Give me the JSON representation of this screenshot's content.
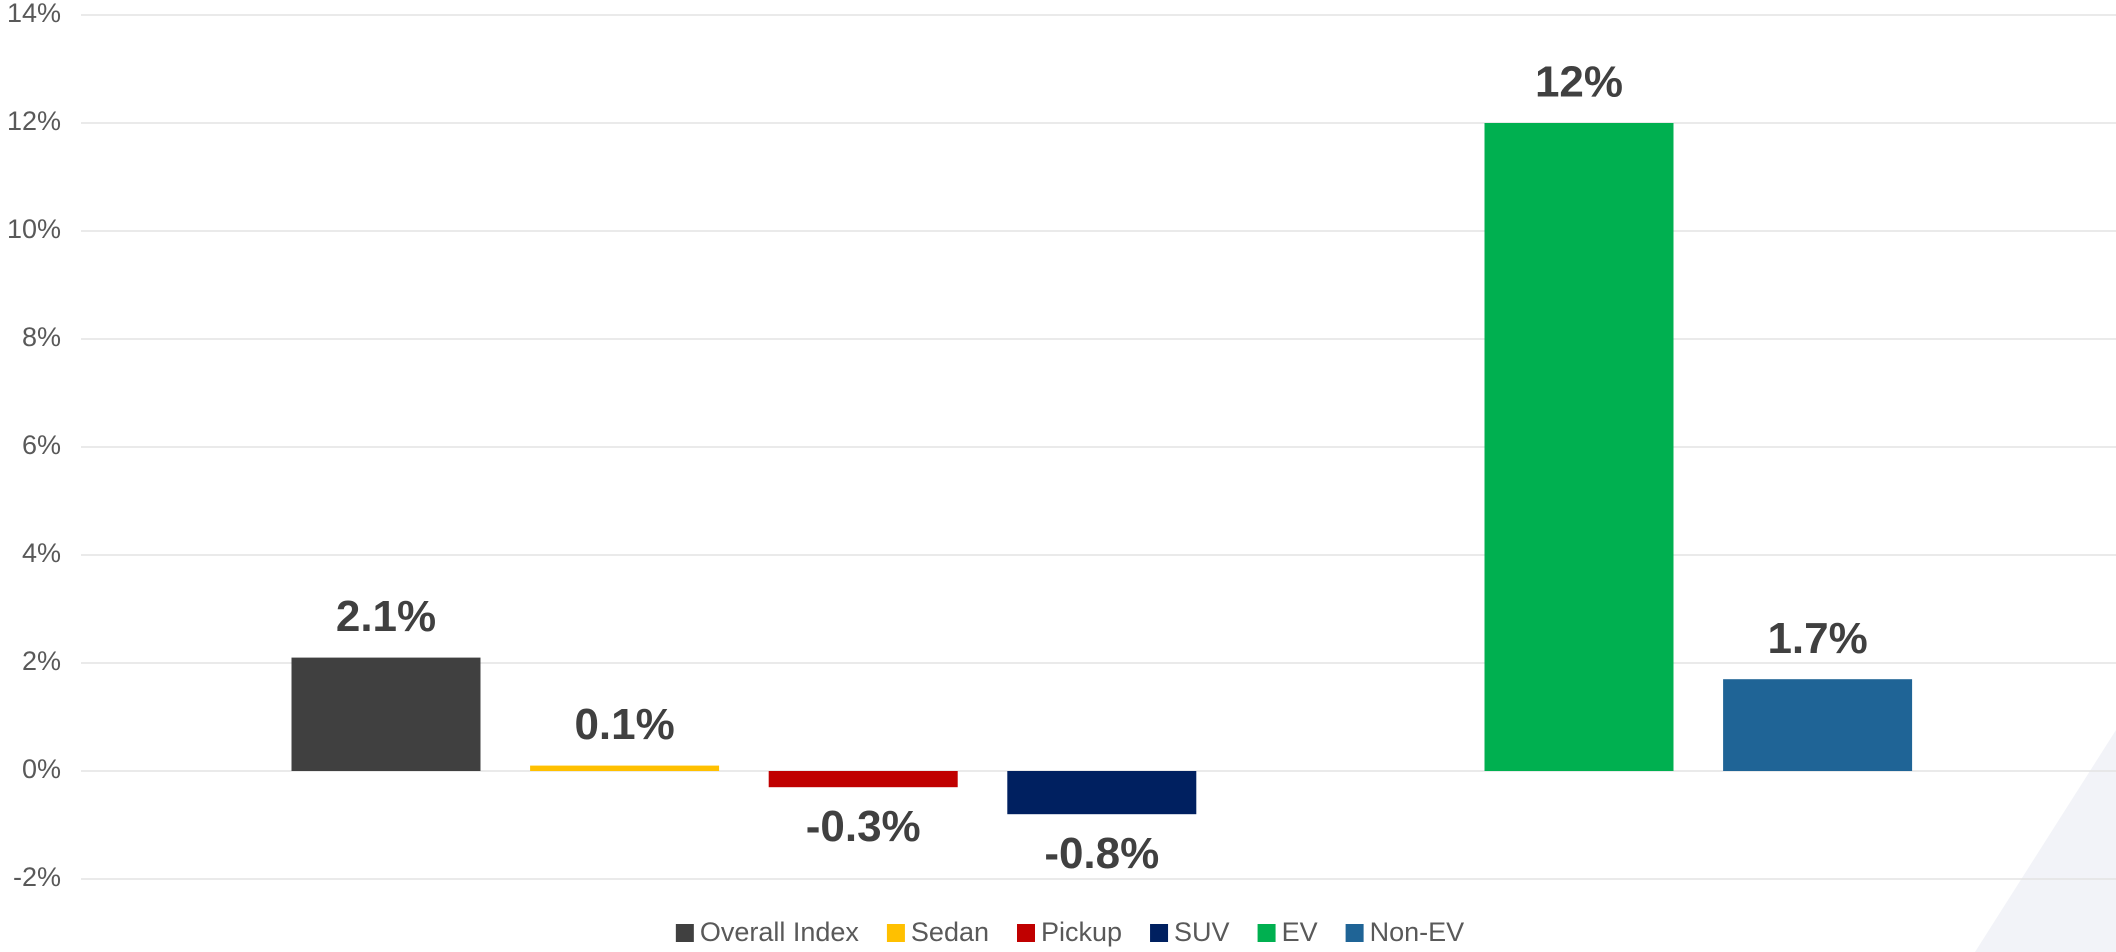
{
  "chart_data": {
    "type": "bar",
    "series": [
      {
        "name": "Overall Index",
        "color": "#404040",
        "values": [
          2.1
        ],
        "value_labels": [
          "2.1%"
        ]
      },
      {
        "name": "Sedan",
        "color": "#ffc000",
        "values": [
          0.1
        ],
        "value_labels": [
          "0.1%"
        ]
      },
      {
        "name": "Pickup",
        "color": "#c00000",
        "values": [
          -0.3
        ],
        "value_labels": [
          "-0.3%"
        ]
      },
      {
        "name": "SUV",
        "color": "#002060",
        "values": [
          -0.8
        ],
        "value_labels": [
          "-0.8%"
        ]
      },
      {
        "name": "EV",
        "color": "#00b050",
        "values": [
          12
        ],
        "value_labels": [
          "12%"
        ]
      },
      {
        "name": "Non-EV",
        "color": "#1f6496",
        "values": [
          1.7
        ],
        "value_labels": [
          "1.7%"
        ]
      }
    ],
    "ylim": [
      -2,
      14
    ],
    "yticks": [
      {
        "value": -2,
        "label": "-2%"
      },
      {
        "value": 0,
        "label": "0%"
      },
      {
        "value": 2,
        "label": "2%"
      },
      {
        "value": 4,
        "label": "4%"
      },
      {
        "value": 6,
        "label": "6%"
      },
      {
        "value": 8,
        "label": "8%"
      },
      {
        "value": 10,
        "label": "10%"
      },
      {
        "value": 12,
        "label": "12%"
      },
      {
        "value": 14,
        "label": "14%"
      }
    ],
    "grid": true,
    "legend": "bottom"
  }
}
